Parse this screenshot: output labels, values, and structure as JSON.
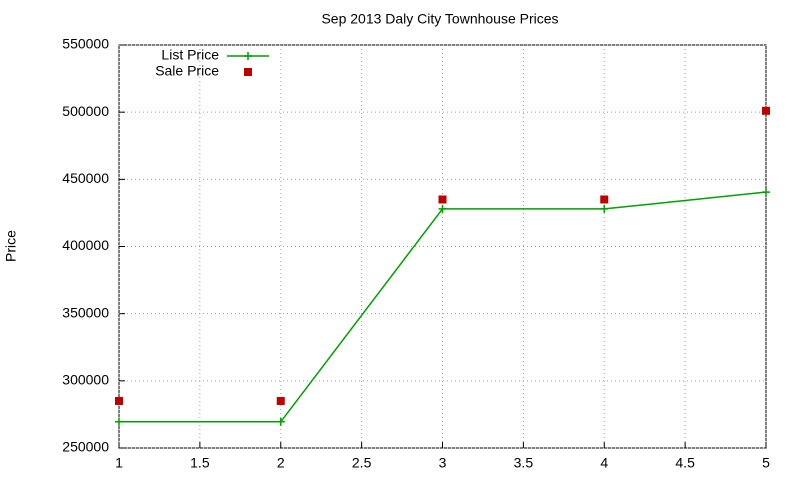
{
  "chart_data": {
    "type": "line",
    "title": "Sep 2013 Daly City Townhouse Prices",
    "y_label": "Price",
    "x": [
      1,
      2,
      3,
      4,
      5
    ],
    "series": [
      {
        "name": "List Price",
        "color": "#00a000",
        "style": "linespoints",
        "values": [
          269500,
          269500,
          428000,
          428000,
          440500
        ]
      },
      {
        "name": "Sale Price",
        "color": "#c00000",
        "style": "points",
        "values": [
          285000,
          285000,
          435000,
          435000,
          501000
        ]
      }
    ],
    "xlim": [
      1,
      5
    ],
    "xticks": [
      1,
      1.5,
      2,
      2.5,
      3,
      3.5,
      4,
      4.5,
      5
    ],
    "ylim": [
      250000,
      550000
    ],
    "yticks": [
      250000,
      300000,
      350000,
      400000,
      450000,
      500000,
      550000
    ],
    "grid": true,
    "legend": "top-left"
  }
}
